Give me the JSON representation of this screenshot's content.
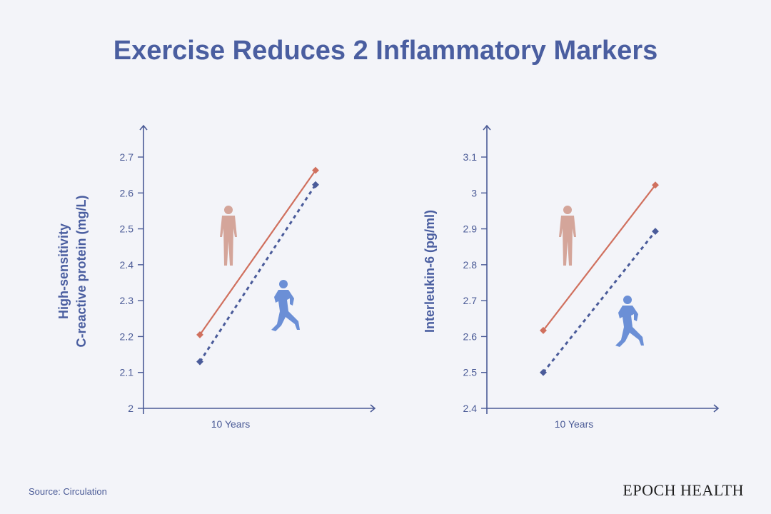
{
  "title": "Exercise Reduces 2 Inflammatory Markers",
  "source": "Source: Circulation",
  "brand": "EPOCH HEALTH",
  "colors": {
    "sedentary": "#d0705e",
    "exercise": "#4a5b9a",
    "person_icon": "#d4a59a",
    "runner_icon": "#6b8fd6",
    "axis": "#4a5a96"
  },
  "icons": [
    "standing-person-icon",
    "running-person-icon"
  ],
  "chart_data": [
    {
      "type": "line",
      "ylabel_lines": [
        "High-sensitivity",
        "C-reactive protein (mg/L)"
      ],
      "xlabel": "10 Years",
      "ylim": [
        2,
        2.7
      ],
      "yticks": [
        "2",
        "2.1",
        "2.2",
        "2.3",
        "2.4",
        "2.5",
        "2.6",
        "2.7"
      ],
      "grid": false,
      "series": [
        {
          "style": "solid",
          "color": "#d0705e",
          "icon": "standing-person-icon",
          "values": [
            2.205,
            2.663
          ]
        },
        {
          "style": "dashed",
          "color": "#4a5b9a",
          "icon": "running-person-icon",
          "values": [
            2.13,
            2.623
          ]
        }
      ]
    },
    {
      "type": "line",
      "ylabel_lines": [
        "Interleukin-6 (pg/ml)"
      ],
      "xlabel": "10 Years",
      "ylim": [
        2.4,
        3.1
      ],
      "yticks": [
        "2.4",
        "2.5",
        "2.6",
        "2.7",
        "2.8",
        "2.9",
        "3",
        "3.1"
      ],
      "grid": false,
      "series": [
        {
          "style": "solid",
          "color": "#d0705e",
          "icon": "standing-person-icon",
          "values": [
            2.617,
            3.022
          ]
        },
        {
          "style": "dashed",
          "color": "#4a5b9a",
          "icon": "running-person-icon",
          "values": [
            2.5,
            2.893
          ]
        }
      ]
    }
  ]
}
